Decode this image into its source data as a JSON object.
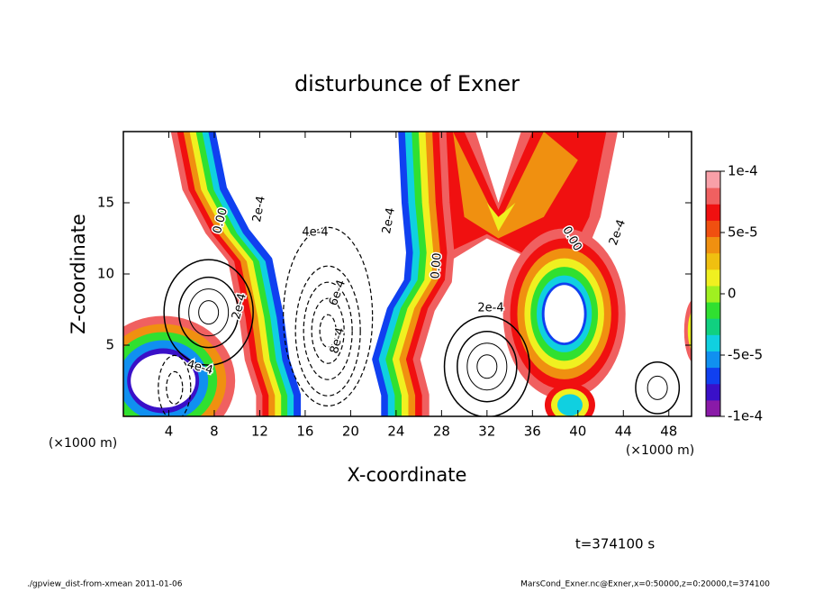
{
  "chart_data": {
    "type": "contour",
    "title": "disturbunce of Exner",
    "x_label": "X-coordinate",
    "y_label": "Z-coordinate",
    "x_unit": "(×1000 m)",
    "xlim": [
      0,
      50
    ],
    "xticks": [
      4,
      8,
      12,
      16,
      20,
      24,
      28,
      32,
      36,
      40,
      44,
      48
    ],
    "ylim": [
      0,
      20
    ],
    "yticks": [
      5,
      10,
      15
    ],
    "colorbar": {
      "lim": [
        -0.0001,
        0.0001
      ],
      "ticks": [
        {
          "value": 0.0001,
          "label": "1e-4"
        },
        {
          "value": 5e-05,
          "label": "5e-5"
        },
        {
          "value": 0,
          "label": "0"
        },
        {
          "value": -5e-05,
          "label": "-5e-5"
        },
        {
          "value": -0.0001,
          "label": "-1e-4"
        }
      ],
      "colors": [
        "#8a1aa8",
        "#3a10c8",
        "#1040f0",
        "#1090f0",
        "#10d0e0",
        "#10d080",
        "#30e030",
        "#a0f020",
        "#f0f020",
        "#f0c010",
        "#f09010",
        "#f05010",
        "#f01010",
        "#f06060",
        "#f8a0a8"
      ]
    },
    "contour_labels": [
      "0.00",
      "2e-4",
      "4e-4",
      "6e-4",
      "8e-4",
      "2e-4",
      "0.00",
      "2e-4",
      "0.00",
      "2e-4",
      "2e-4",
      "4e-4"
    ],
    "time_label": "t=374100 s",
    "footer_left": "./gpview_dist-from-xmean  2011-01-06",
    "footer_right": "MarsCond_Exner.nc@Exner,x=0:50000,z=0:20000,t=374100"
  }
}
